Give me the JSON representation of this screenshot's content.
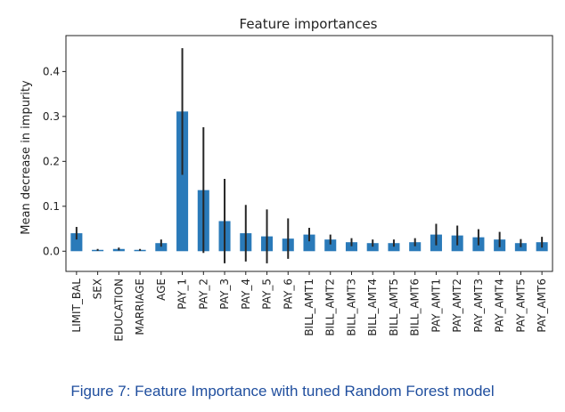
{
  "chart_data": {
    "type": "bar",
    "title": "Feature importances",
    "xlabel": "",
    "ylabel": "Mean decrease in impurity",
    "ylim": [
      -0.045,
      0.48
    ],
    "yticks": [
      "0.0",
      "0.1",
      "0.2",
      "0.3",
      "0.4"
    ],
    "categories": [
      "LIMIT_BAL",
      "SEX",
      "EDUCATION",
      "MARRIAGE",
      "AGE",
      "PAY_1",
      "PAY_2",
      "PAY_3",
      "PAY_4",
      "PAY_5",
      "PAY_6",
      "BILL_AMT1",
      "BILL_AMT2",
      "BILL_AMT3",
      "BILL_AMT4",
      "BILL_AMT5",
      "BILL_AMT6",
      "PAY_AMT1",
      "PAY_AMT2",
      "PAY_AMT3",
      "PAY_AMT4",
      "PAY_AMT5",
      "PAY_AMT6"
    ],
    "values": [
      0.04,
      0.003,
      0.005,
      0.003,
      0.018,
      0.311,
      0.136,
      0.067,
      0.04,
      0.033,
      0.028,
      0.037,
      0.026,
      0.02,
      0.018,
      0.018,
      0.02,
      0.037,
      0.035,
      0.031,
      0.026,
      0.018,
      0.02
    ],
    "errors": [
      0.014,
      0.002,
      0.003,
      0.002,
      0.008,
      0.141,
      0.14,
      0.094,
      0.063,
      0.06,
      0.045,
      0.015,
      0.011,
      0.009,
      0.008,
      0.008,
      0.009,
      0.024,
      0.022,
      0.018,
      0.017,
      0.009,
      0.012
    ],
    "bar_color": "#2a7ab9",
    "error_color": "#262626",
    "grid": false
  },
  "caption": "Figure 7: Feature Importance with tuned Random Forest model"
}
